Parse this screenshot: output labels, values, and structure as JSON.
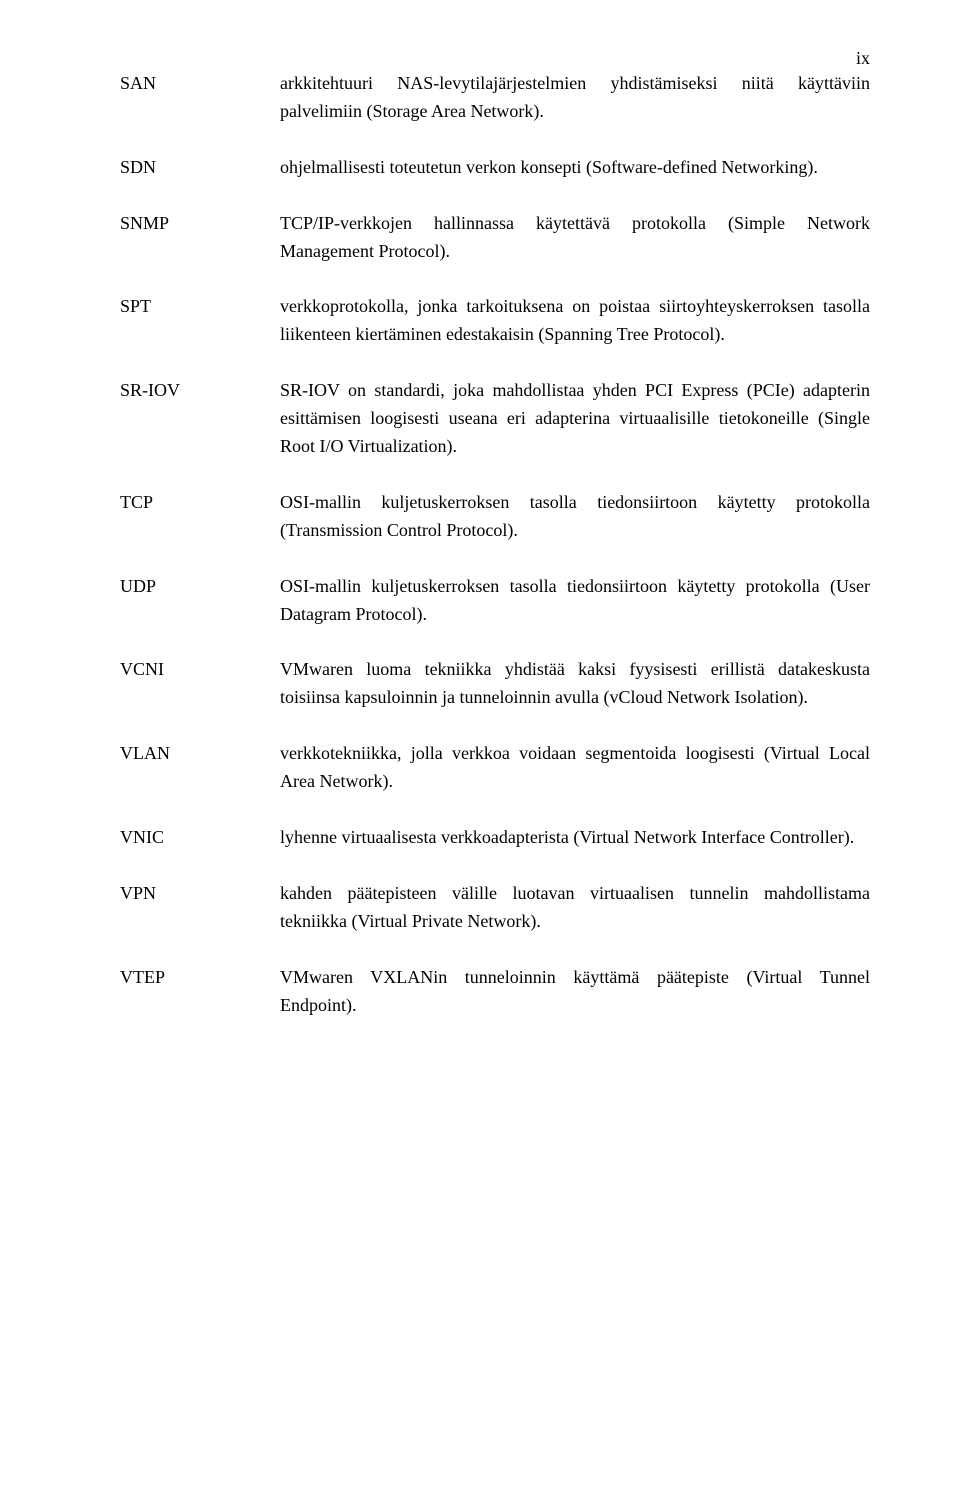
{
  "pageNumber": "ix",
  "entries": [
    {
      "term": "SAN",
      "def": "arkkitehtuuri NAS-levytilajärjestelmien yhdistämiseksi niitä käyttäviin palvelimiin (Storage Area Network)."
    },
    {
      "term": "SDN",
      "def": "ohjelmallisesti toteutetun verkon konsepti (Software-defined Networking)."
    },
    {
      "term": "SNMP",
      "def": "TCP/IP-verkkojen hallinnassa käytettävä protokolla (Simple Network Management Protocol)."
    },
    {
      "term": "SPT",
      "def": "verkkoprotokolla, jonka tarkoituksena on poistaa siirtoyhteyskerroksen tasolla liikenteen kiertäminen edestakaisin (Spanning Tree Protocol)."
    },
    {
      "term": "SR-IOV",
      "def": "SR-IOV on standardi, joka mahdollistaa yhden PCI Express (PCIe) adapterin esittämisen loogisesti useana eri adapterina virtuaalisille tietokoneille (Single Root I/O Virtualization)."
    },
    {
      "term": "TCP",
      "def": "OSI-mallin kuljetuskerroksen tasolla tiedonsiirtoon käytetty protokolla (Transmission Control Protocol)."
    },
    {
      "term": "UDP",
      "def": "OSI-mallin kuljetuskerroksen tasolla tiedonsiirtoon käytetty protokolla (User Datagram Protocol)."
    },
    {
      "term": "VCNI",
      "def": "VMwaren luoma tekniikka yhdistää kaksi fyysisesti erillistä datakeskusta toisiinsa kapsuloinnin ja tunneloinnin avulla (vCloud Network Isolation)."
    },
    {
      "term": "VLAN",
      "def": "verkkotekniikka, jolla verkkoa voidaan segmentoida loogisesti (Virtual Local Area Network)."
    },
    {
      "term": "VNIC",
      "def": "lyhenne virtuaalisesta verkkoadapterista (Virtual Network Interface Controller)."
    },
    {
      "term": "VPN",
      "def": "kahden päätepisteen välille luotavan virtuaalisen tunnelin mahdollistama tekniikka (Virtual Private Network)."
    },
    {
      "term": "VTEP",
      "def": "VMwaren VXLANin tunneloinnin käyttämä päätepiste (Virtual Tunnel Endpoint)."
    }
  ]
}
